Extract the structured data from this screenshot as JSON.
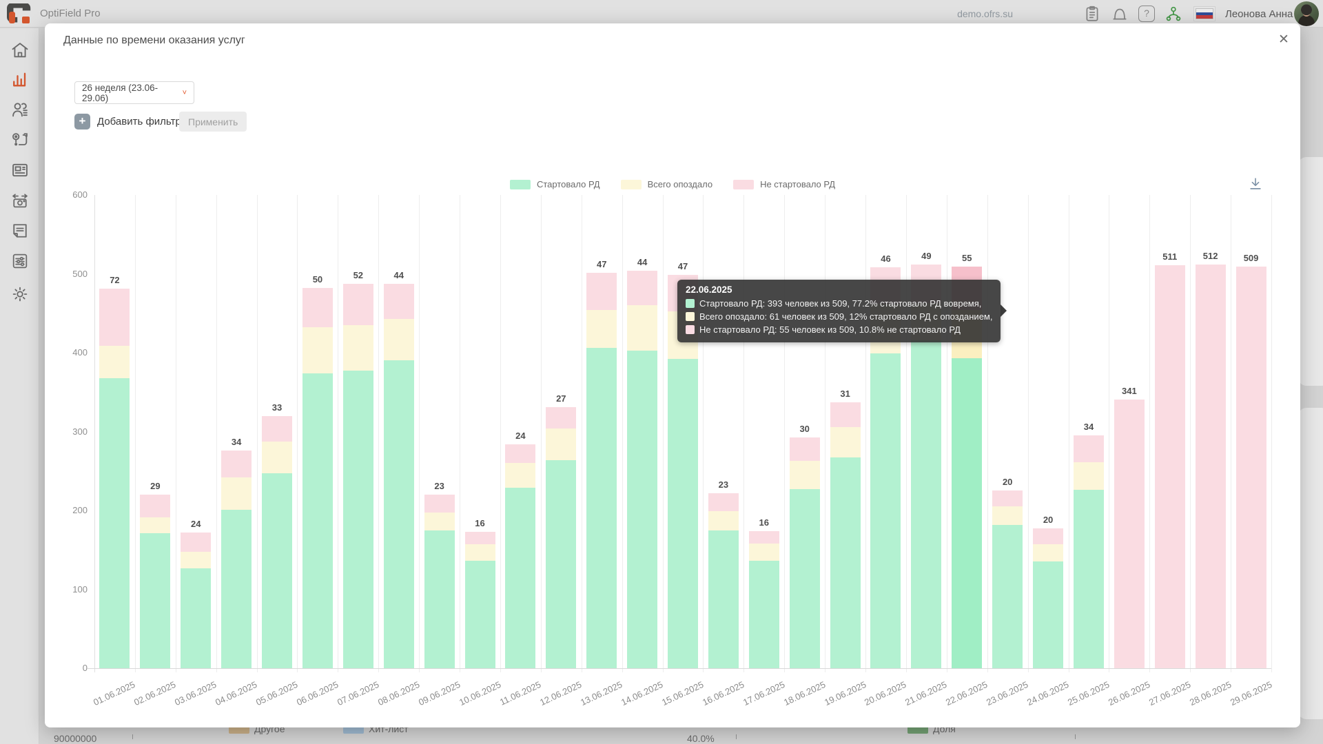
{
  "topbar": {
    "app_name": "OptiField Pro",
    "domain": "demo.ofrs.su",
    "user_name": "Леонова Анна",
    "help_glyph": "?",
    "user_chevron_glyph": "▾",
    "icons": [
      "clipboard-icon",
      "bell-icon",
      "help-icon",
      "org-share-icon",
      "flag-russia-icon",
      "avatar"
    ]
  },
  "sidebar": {
    "icons": [
      "home-icon",
      "bar-chart-icon",
      "people-icon",
      "route-icon",
      "news-icon",
      "camera-icon",
      "document-icon",
      "sliders-icon",
      "gear-icon"
    ],
    "active_icon": "bar-chart-icon",
    "active_color": "#e2572b"
  },
  "modal": {
    "title": "Данные по времени оказания услуг",
    "close_glyph": "✕",
    "week_selector": "26 неделя (23.06-29.06)",
    "week_chevron_glyph": "˅",
    "plus_glyph": "+",
    "add_filter_label": "Добавить фильтр",
    "apply_label": "Применить"
  },
  "chart_data": {
    "type": "bar",
    "stacked": true,
    "categories": [
      "01.06.2025",
      "02.06.2025",
      "03.06.2025",
      "04.06.2025",
      "05.06.2025",
      "06.06.2025",
      "07.06.2025",
      "08.06.2025",
      "09.06.2025",
      "10.06.2025",
      "11.06.2025",
      "12.06.2025",
      "13.06.2025",
      "14.06.2025",
      "15.06.2025",
      "16.06.2025",
      "17.06.2025",
      "18.06.2025",
      "19.06.2025",
      "20.06.2025",
      "21.06.2025",
      "22.06.2025",
      "23.06.2025",
      "24.06.2025",
      "25.06.2025",
      "26.06.2025",
      "27.06.2025",
      "28.06.2025",
      "29.06.2025"
    ],
    "series": [
      {
        "name": "Стартовало РД",
        "color": "#b3f1d1",
        "hover_color": "#a0eec5",
        "values": [
          368,
          171,
          127,
          201,
          247,
          374,
          377,
          390,
          175,
          136,
          229,
          264,
          406,
          403,
          392,
          175,
          136,
          227,
          267,
          399,
          416,
          393,
          182,
          135,
          226,
          0,
          0,
          0,
          0
        ]
      },
      {
        "name": "Всего опоздало",
        "color": "#fcf6d9",
        "hover_color": "#fbefc0",
        "values": [
          41,
          20,
          21,
          41,
          40,
          58,
          58,
          53,
          22,
          21,
          31,
          40,
          48,
          57,
          60,
          24,
          22,
          36,
          39,
          63,
          47,
          61,
          23,
          22,
          35,
          0,
          0,
          0,
          0
        ]
      },
      {
        "name": "Не стартовало РД",
        "color": "#fadce2",
        "hover_color": "#f6c0cb",
        "values": [
          72,
          29,
          24,
          34,
          33,
          50,
          52,
          44,
          23,
          16,
          24,
          27,
          47,
          44,
          47,
          23,
          16,
          30,
          31,
          46,
          49,
          55,
          20,
          20,
          34,
          341,
          511,
          512,
          509
        ]
      }
    ],
    "title": "",
    "xlabel": "",
    "ylabel": "",
    "ylim": [
      0,
      600
    ],
    "yticks": [
      0,
      100,
      200,
      300,
      400,
      500,
      600
    ],
    "grid": "vertical-only",
    "legend_position": "top",
    "highlighted_category": "22.06.2025"
  },
  "tooltip": {
    "date": "22.06.2025",
    "rows": [
      {
        "color": "#b3f1d1",
        "text": "Стартовало РД: 393 человек из 509, 77.2% стартовало РД вовремя,"
      },
      {
        "color": "#fcf6d9",
        "text": "Всего опоздало: 61 человек из 509, 12% стартовало РД с опозданием,"
      },
      {
        "color": "#fadce2",
        "text": "Не стартовало РД: 55 человек из 509, 10.8% не стартовало РД"
      }
    ]
  },
  "background_strip": {
    "left_axis_value": "90000000",
    "percent_value": "40.0%",
    "legend_left": [
      {
        "label": "Другое",
        "color": "#d9bc8f"
      },
      {
        "label": "Хит-лист",
        "color": "#a9c7e0"
      }
    ],
    "legend_right": [
      {
        "label": "Доля",
        "color": "#79ab79"
      }
    ]
  }
}
